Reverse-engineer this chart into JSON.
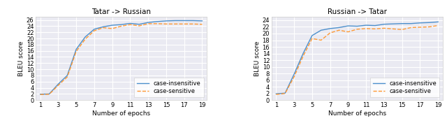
{
  "plot1": {
    "title": "Tatar -> Russian",
    "xlabel": "Number of epochs",
    "ylabel": "BLEU score",
    "xticks": [
      1,
      3,
      5,
      7,
      9,
      11,
      13,
      15,
      17,
      19
    ],
    "ylim": [
      0,
      27
    ],
    "yticks": [
      0,
      2,
      4,
      6,
      8,
      10,
      12,
      14,
      16,
      18,
      20,
      22,
      24,
      26
    ],
    "case_insensitive": [
      1.9,
      2.0,
      5.2,
      8.0,
      16.5,
      20.5,
      23.0,
      23.8,
      24.3,
      24.5,
      24.9,
      24.6,
      25.2,
      25.5,
      25.7,
      25.8,
      25.8,
      25.8,
      25.7
    ],
    "case_sensitive": [
      1.8,
      1.9,
      4.8,
      7.5,
      15.8,
      19.8,
      22.5,
      23.5,
      23.2,
      24.0,
      24.5,
      24.1,
      24.8,
      24.8,
      24.7,
      24.7,
      24.7,
      24.7,
      24.6
    ]
  },
  "plot2": {
    "title": "Russian -> Tatar",
    "xlabel": "Number of epochs",
    "ylabel": "BLEU score",
    "xticks": [
      1,
      3,
      5,
      7,
      9,
      11,
      13,
      15,
      17,
      19
    ],
    "ylim": [
      0,
      25
    ],
    "yticks": [
      0,
      2,
      4,
      6,
      8,
      10,
      12,
      14,
      16,
      18,
      20,
      22,
      24
    ],
    "case_insensitive": [
      1.9,
      2.1,
      7.8,
      14.0,
      19.4,
      21.0,
      21.5,
      21.8,
      22.3,
      22.2,
      22.5,
      22.4,
      22.8,
      22.9,
      23.0,
      23.0,
      23.2,
      23.3,
      23.5
    ],
    "case_sensitive": [
      1.7,
      2.0,
      7.0,
      13.2,
      18.5,
      18.0,
      20.2,
      21.0,
      20.5,
      21.3,
      21.5,
      21.4,
      21.6,
      21.4,
      21.2,
      21.8,
      21.9,
      22.0,
      22.4
    ]
  },
  "color_insensitive": "#4c8fcc",
  "color_sensitive": "#ff9933",
  "legend_insensitive": "case-insensitive",
  "legend_sensitive": "case-sensitive",
  "line_width": 1.0,
  "axes_facecolor": "#eaeaf2",
  "grid_color": "#ffffff",
  "fig_facecolor": "#ffffff",
  "title_fontsize": 7.5,
  "label_fontsize": 6.5,
  "tick_fontsize": 6.0,
  "legend_fontsize": 6.0
}
